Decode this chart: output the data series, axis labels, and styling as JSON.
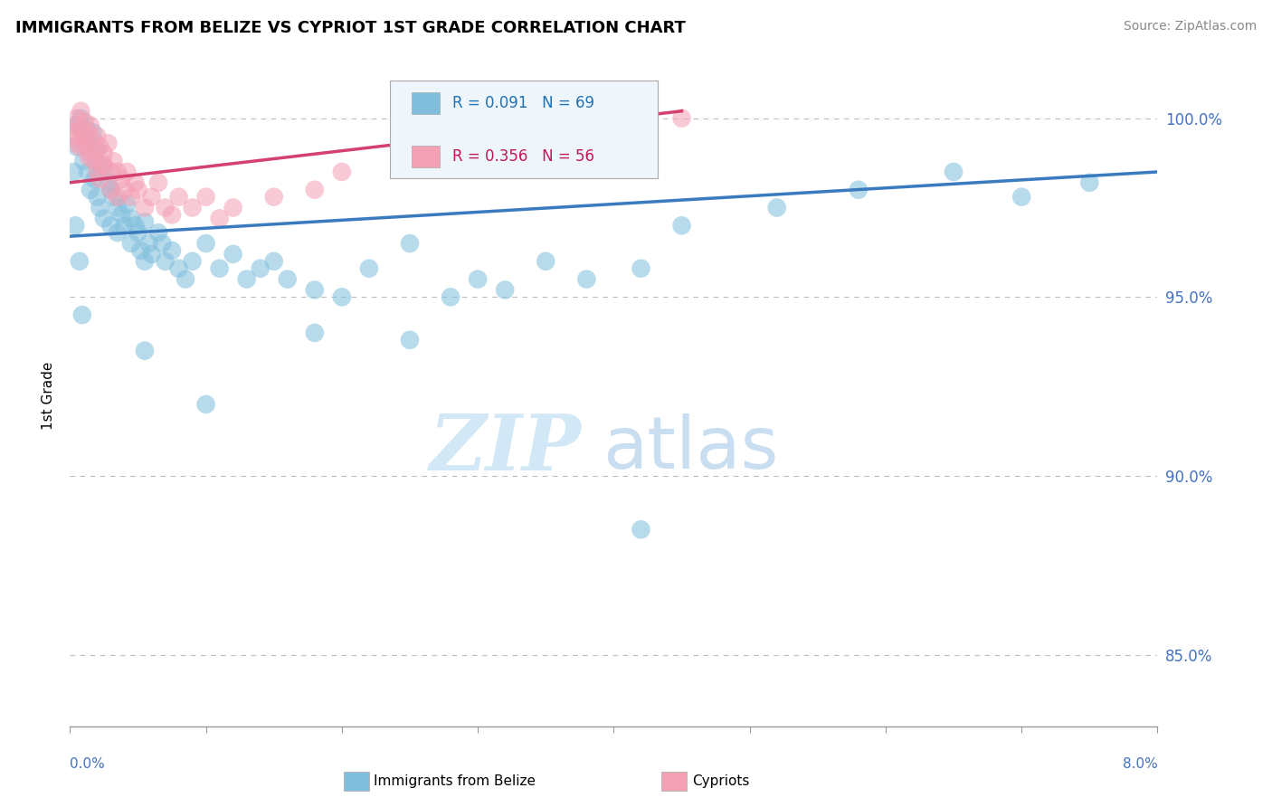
{
  "title": "IMMIGRANTS FROM BELIZE VS CYPRIOT 1ST GRADE CORRELATION CHART",
  "source": "Source: ZipAtlas.com",
  "ylabel": "1st Grade",
  "xlim": [
    0.0,
    8.0
  ],
  "ylim": [
    83.0,
    101.5
  ],
  "yticks": [
    85.0,
    90.0,
    95.0,
    100.0
  ],
  "blue_R": 0.091,
  "blue_N": 69,
  "pink_R": 0.356,
  "pink_N": 56,
  "blue_color": "#7fbfdd",
  "pink_color": "#f4a0b5",
  "blue_line_color": "#3a7abf",
  "pink_line_color": "#d44070",
  "blue_line_x0": 0.0,
  "blue_line_y0": 96.7,
  "blue_line_x1": 8.0,
  "blue_line_y1": 98.5,
  "pink_line_x0": 0.0,
  "pink_line_y0": 98.2,
  "pink_line_x1": 4.5,
  "pink_line_y1": 100.2,
  "blue_scatter_x": [
    0.05,
    0.06,
    0.08,
    0.1,
    0.1,
    0.12,
    0.13,
    0.15,
    0.15,
    0.17,
    0.18,
    0.2,
    0.2,
    0.22,
    0.22,
    0.25,
    0.25,
    0.28,
    0.3,
    0.3,
    0.32,
    0.35,
    0.35,
    0.38,
    0.4,
    0.42,
    0.45,
    0.45,
    0.48,
    0.5,
    0.52,
    0.55,
    0.55,
    0.58,
    0.6,
    0.65,
    0.68,
    0.7,
    0.75,
    0.8,
    0.85,
    0.9,
    1.0,
    1.1,
    1.2,
    1.3,
    1.4,
    1.5,
    1.6,
    1.8,
    2.0,
    2.2,
    2.5,
    2.8,
    3.0,
    3.2,
    3.5,
    3.8,
    4.2,
    4.5,
    5.2,
    5.8,
    6.5,
    7.0,
    7.5,
    0.03,
    0.04,
    0.07,
    0.09
  ],
  "blue_scatter_y": [
    99.2,
    99.8,
    100.0,
    99.5,
    98.8,
    99.7,
    98.5,
    99.3,
    98.0,
    99.6,
    98.3,
    99.1,
    97.8,
    98.7,
    97.5,
    98.5,
    97.2,
    98.2,
    98.0,
    97.0,
    97.8,
    97.5,
    96.8,
    97.3,
    97.0,
    97.6,
    97.2,
    96.5,
    97.0,
    96.8,
    96.3,
    97.1,
    96.0,
    96.5,
    96.2,
    96.8,
    96.5,
    96.0,
    96.3,
    95.8,
    95.5,
    96.0,
    96.5,
    95.8,
    96.2,
    95.5,
    95.8,
    96.0,
    95.5,
    95.2,
    95.0,
    95.8,
    96.5,
    95.0,
    95.5,
    95.2,
    96.0,
    95.5,
    95.8,
    97.0,
    97.5,
    98.0,
    98.5,
    97.8,
    98.2,
    98.5,
    97.0,
    96.0,
    94.5
  ],
  "blue_outlier_x": [
    0.55,
    1.0,
    1.8,
    2.5,
    4.2
  ],
  "blue_outlier_y": [
    93.5,
    92.0,
    94.0,
    93.8,
    88.5
  ],
  "pink_scatter_x": [
    0.02,
    0.04,
    0.05,
    0.06,
    0.08,
    0.09,
    0.1,
    0.11,
    0.12,
    0.13,
    0.15,
    0.15,
    0.17,
    0.18,
    0.2,
    0.2,
    0.22,
    0.22,
    0.25,
    0.25,
    0.28,
    0.3,
    0.3,
    0.32,
    0.35,
    0.35,
    0.38,
    0.4,
    0.42,
    0.45,
    0.48,
    0.5,
    0.55,
    0.6,
    0.65,
    0.7,
    0.75,
    0.8,
    0.9,
    1.0,
    1.1,
    1.2,
    1.5,
    1.8,
    2.0,
    2.5,
    3.0,
    3.5,
    4.0,
    4.5,
    0.03,
    0.07,
    0.11,
    0.14,
    0.19,
    0.24
  ],
  "pink_scatter_y": [
    99.5,
    99.8,
    100.0,
    99.3,
    100.2,
    99.7,
    99.5,
    99.9,
    99.2,
    99.6,
    99.8,
    99.0,
    99.4,
    98.8,
    99.5,
    98.5,
    99.2,
    98.3,
    99.0,
    98.7,
    99.3,
    98.5,
    98.0,
    98.8,
    98.5,
    97.8,
    98.3,
    98.0,
    98.5,
    97.8,
    98.2,
    98.0,
    97.5,
    97.8,
    98.2,
    97.5,
    97.3,
    97.8,
    97.5,
    97.8,
    97.2,
    97.5,
    97.8,
    98.0,
    98.5,
    98.8,
    99.0,
    99.3,
    99.5,
    100.0,
    99.6,
    99.2,
    99.4,
    98.9,
    99.1,
    98.7
  ]
}
